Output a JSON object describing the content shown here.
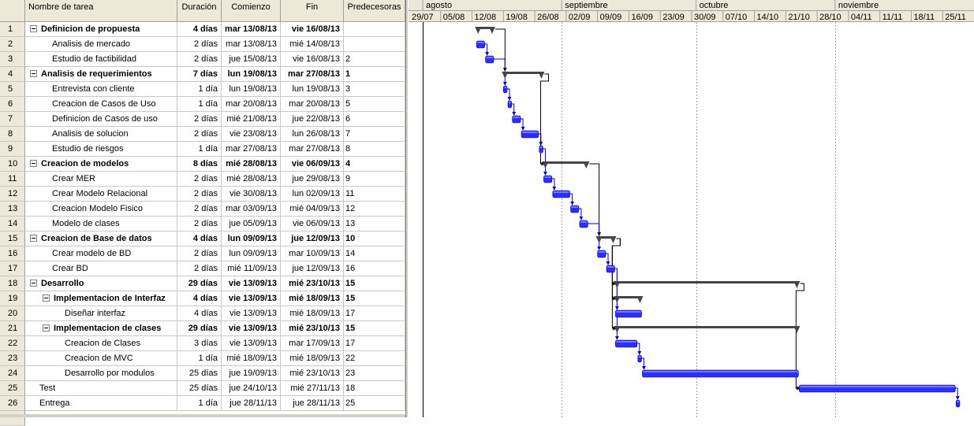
{
  "table": {
    "headers": {
      "name": "Nombre de tarea",
      "duration": "Duración",
      "start": "Comienzo",
      "end": "Fin",
      "pred": "Predecesoras"
    },
    "rows": [
      {
        "id": "1",
        "name": "Definicion de propuesta",
        "dur": "4 días",
        "start": "mar 13/08/13",
        "end": "vie 16/08/13",
        "pred": "",
        "level": 0,
        "summary": true,
        "collapse": true
      },
      {
        "id": "2",
        "name": "Analisis de mercado",
        "dur": "2 días",
        "start": "mar 13/08/13",
        "end": "mié 14/08/13",
        "pred": "",
        "level": 1,
        "summary": false,
        "collapse": false
      },
      {
        "id": "3",
        "name": "Estudio de factibilidad",
        "dur": "2 días",
        "start": "jue 15/08/13",
        "end": "vie 16/08/13",
        "pred": "2",
        "level": 1,
        "summary": false,
        "collapse": false
      },
      {
        "id": "4",
        "name": "Analisis de requerimientos",
        "dur": "7 días",
        "start": "lun 19/08/13",
        "end": "mar 27/08/13",
        "pred": "1",
        "level": 0,
        "summary": true,
        "collapse": true
      },
      {
        "id": "5",
        "name": "Entrevista con cliente",
        "dur": "1 día",
        "start": "lun 19/08/13",
        "end": "lun 19/08/13",
        "pred": "3",
        "level": 1,
        "summary": false,
        "collapse": false
      },
      {
        "id": "6",
        "name": "Creacion de Casos de Uso",
        "dur": "1 día",
        "start": "mar 20/08/13",
        "end": "mar 20/08/13",
        "pred": "5",
        "level": 1,
        "summary": false,
        "collapse": false
      },
      {
        "id": "7",
        "name": "Definicion de Casos de uso",
        "dur": "2 días",
        "start": "mié 21/08/13",
        "end": "jue 22/08/13",
        "pred": "6",
        "level": 1,
        "summary": false,
        "collapse": false
      },
      {
        "id": "8",
        "name": "Analisis de solucion",
        "dur": "2 días",
        "start": "vie 23/08/13",
        "end": "lun 26/08/13",
        "pred": "7",
        "level": 1,
        "summary": false,
        "collapse": false
      },
      {
        "id": "9",
        "name": "Estudio de riesgos",
        "dur": "1 día",
        "start": "mar 27/08/13",
        "end": "mar 27/08/13",
        "pred": "8",
        "level": 1,
        "summary": false,
        "collapse": false
      },
      {
        "id": "10",
        "name": "Creacion de modelos",
        "dur": "8 días",
        "start": "mié 28/08/13",
        "end": "vie 06/09/13",
        "pred": "4",
        "level": 0,
        "summary": true,
        "collapse": true
      },
      {
        "id": "11",
        "name": "Crear MER",
        "dur": "2 días",
        "start": "mié 28/08/13",
        "end": "jue 29/08/13",
        "pred": "9",
        "level": 1,
        "summary": false,
        "collapse": false
      },
      {
        "id": "12",
        "name": "Crear Modelo Relacional",
        "dur": "2 días",
        "start": "vie 30/08/13",
        "end": "lun 02/09/13",
        "pred": "11",
        "level": 1,
        "summary": false,
        "collapse": false
      },
      {
        "id": "13",
        "name": "Creacion Modelo Fisico",
        "dur": "2 días",
        "start": "mar 03/09/13",
        "end": "mié 04/09/13",
        "pred": "12",
        "level": 1,
        "summary": false,
        "collapse": false
      },
      {
        "id": "14",
        "name": "Modelo de clases",
        "dur": "2 días",
        "start": "jue 05/09/13",
        "end": "vie 06/09/13",
        "pred": "13",
        "level": 1,
        "summary": false,
        "collapse": false
      },
      {
        "id": "15",
        "name": "Creacion de Base de datos",
        "dur": "4 días",
        "start": "lun 09/09/13",
        "end": "jue 12/09/13",
        "pred": "10",
        "level": 0,
        "summary": true,
        "collapse": true
      },
      {
        "id": "16",
        "name": "Crear modelo de BD",
        "dur": "2 días",
        "start": "lun 09/09/13",
        "end": "mar 10/09/13",
        "pred": "14",
        "level": 1,
        "summary": false,
        "collapse": false
      },
      {
        "id": "17",
        "name": "Crear BD",
        "dur": "2 días",
        "start": "mié 11/09/13",
        "end": "jue 12/09/13",
        "pred": "16",
        "level": 1,
        "summary": false,
        "collapse": false
      },
      {
        "id": "18",
        "name": "Desarrollo",
        "dur": "29 días",
        "start": "vie 13/09/13",
        "end": "mié 23/10/13",
        "pred": "15",
        "level": 0,
        "summary": true,
        "collapse": true
      },
      {
        "id": "19",
        "name": "Implementacion de Interfaz",
        "dur": "4 días",
        "start": "vie 13/09/13",
        "end": "mié 18/09/13",
        "pred": "15",
        "level": 1,
        "summary": true,
        "collapse": true
      },
      {
        "id": "20",
        "name": "Diseñar interfaz",
        "dur": "4 días",
        "start": "vie 13/09/13",
        "end": "mié 18/09/13",
        "pred": "17",
        "level": 2,
        "summary": false,
        "collapse": false
      },
      {
        "id": "21",
        "name": "Implementacion de clases",
        "dur": "29 días",
        "start": "vie 13/09/13",
        "end": "mié 23/10/13",
        "pred": "15",
        "level": 1,
        "summary": true,
        "collapse": true
      },
      {
        "id": "22",
        "name": "Creacion de Clases",
        "dur": "3 días",
        "start": "vie 13/09/13",
        "end": "mar 17/09/13",
        "pred": "17",
        "level": 2,
        "summary": false,
        "collapse": false
      },
      {
        "id": "23",
        "name": "Creacion de MVC",
        "dur": "1 día",
        "start": "mié 18/09/13",
        "end": "mié 18/09/13",
        "pred": "22",
        "level": 2,
        "summary": false,
        "collapse": false
      },
      {
        "id": "24",
        "name": "Desarrollo por modulos",
        "dur": "25 días",
        "start": "jue 19/09/13",
        "end": "mié 23/10/13",
        "pred": "23",
        "level": 2,
        "summary": false,
        "collapse": false
      },
      {
        "id": "25",
        "name": "Test",
        "dur": "25 días",
        "start": "jue 24/10/13",
        "end": "mié 27/11/13",
        "pred": "18",
        "level": 0,
        "summary": false,
        "collapse": false
      },
      {
        "id": "26",
        "name": "Entrega",
        "dur": "1 día",
        "start": "jue 28/11/13",
        "end": "jue 28/11/13",
        "pred": "25",
        "level": 0,
        "summary": false,
        "collapse": false
      }
    ]
  },
  "gantt": {
    "months": [
      "agosto",
      "septiembre",
      "octubre",
      "noviembre"
    ],
    "weeks": [
      "29/07",
      "05/08",
      "12/08",
      "19/08",
      "26/08",
      "02/09",
      "09/09",
      "16/09",
      "23/09",
      "30/09",
      "07/10",
      "14/10",
      "21/10",
      "28/10",
      "04/11",
      "11/11",
      "18/11",
      "25/11"
    ],
    "colors": {
      "task_bar": "#2d2dff",
      "summary_bar": "#454545",
      "link": "#0000c0",
      "summary_link": "#000000",
      "grid_line": "#a0a0a0"
    }
  }
}
